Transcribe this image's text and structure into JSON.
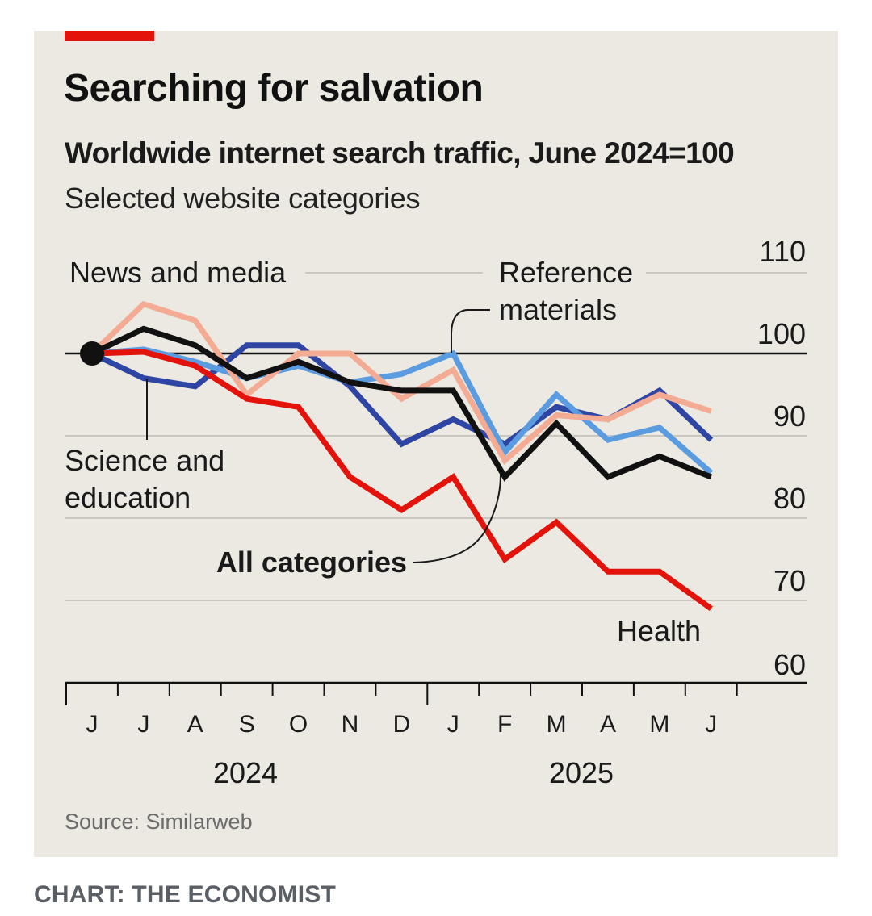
{
  "header": {
    "title": "Searching for salvation",
    "subtitle": "Worldwide internet search traffic, June 2024=100",
    "subtitle2": "Selected website categories"
  },
  "source": "Source: Similarweb",
  "credit": "CHART: THE ECONOMIST",
  "colors": {
    "background": "#ebe9e1",
    "accent_bar": "#e3120b",
    "news_and_media": "#2e45a3",
    "reference_materials": "#f4ab93",
    "science_and_education": "#5b9be0",
    "all_categories": "#111111",
    "health": "#e3120b"
  },
  "chart_data": {
    "type": "line",
    "title": "Searching for salvation",
    "subtitle": "Worldwide internet search traffic, June 2024=100",
    "x": [
      "Jun 2024",
      "Jul 2024",
      "Aug 2024",
      "Sep 2024",
      "Oct 2024",
      "Nov 2024",
      "Dec 2024",
      "Jan 2025",
      "Feb 2025",
      "Mar 2025",
      "Apr 2025",
      "May 2025",
      "Jun 2025"
    ],
    "x_tick_labels": [
      "J",
      "J",
      "A",
      "S",
      "O",
      "N",
      "D",
      "J",
      "F",
      "M",
      "A",
      "M",
      "J"
    ],
    "year_labels": [
      "2024",
      "2025"
    ],
    "ylim": [
      60,
      110
    ],
    "y_ticks": [
      "60",
      "70",
      "80",
      "90",
      "100",
      "110"
    ],
    "baseline": 100,
    "grid": true,
    "series": [
      {
        "name": "News and media",
        "color_key": "news_and_media",
        "values": [
          100,
          97,
          96,
          101,
          101,
          96,
          89,
          92,
          89,
          93.5,
          92,
          95.5,
          89.5
        ]
      },
      {
        "name": "Science and education",
        "color_key": "science_and_education",
        "values": [
          100,
          100.5,
          99,
          97,
          98.5,
          96.5,
          97.5,
          100,
          88,
          95,
          89.5,
          91,
          85.5
        ]
      },
      {
        "name": "Reference materials",
        "color_key": "reference_materials",
        "values": [
          100,
          106,
          104,
          95,
          100,
          100,
          94.5,
          98,
          87,
          92.5,
          92,
          95,
          93
        ]
      },
      {
        "name": "All categories",
        "color_key": "all_categories",
        "values": [
          100,
          103,
          101,
          97,
          99,
          96.5,
          95.5,
          95.5,
          85,
          91.5,
          85,
          87.5,
          85
        ]
      },
      {
        "name": "Health",
        "color_key": "health",
        "values": [
          100,
          100.2,
          98.5,
          94.5,
          93.5,
          85,
          81,
          85,
          75,
          79.5,
          73.5,
          73.5,
          69
        ]
      }
    ],
    "annotations": [
      "News and media",
      "Reference materials",
      "Science and education",
      "All categories",
      "Health"
    ]
  }
}
